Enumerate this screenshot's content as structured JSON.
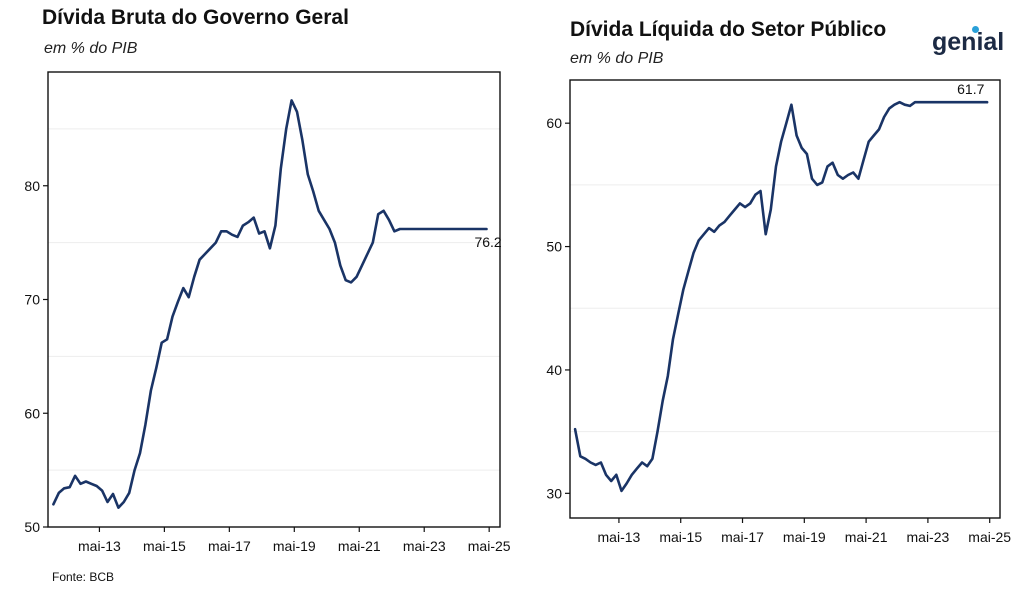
{
  "brand": {
    "name": "genial",
    "accent_color": "#2aa0d8"
  },
  "source": "Fonte: BCB",
  "chart_data": [
    {
      "type": "line",
      "title": "Dívida Bruta do Governo Geral",
      "subtitle": "em % do PIB",
      "xlabel": "",
      "ylabel": "",
      "ylim": [
        50,
        90
      ],
      "yticks": [
        50,
        60,
        70,
        80
      ],
      "xlim": [
        "2011-10",
        "2025-09"
      ],
      "xticks": [
        "mai-13",
        "mai-15",
        "mai-17",
        "mai-19",
        "mai-21",
        "mai-23",
        "mai-25"
      ],
      "grid": false,
      "line_color": "#1a3466",
      "end_label": "76.2",
      "series": [
        {
          "x": [
            "2011-12",
            "2012-02",
            "2012-04",
            "2012-06",
            "2012-08",
            "2012-10",
            "2012-12",
            "2013-02",
            "2013-04",
            "2013-06",
            "2013-08",
            "2013-10",
            "2013-12",
            "2014-02",
            "2014-04",
            "2014-06",
            "2014-08",
            "2014-10",
            "2014-12",
            "2015-02",
            "2015-04",
            "2015-06",
            "2015-08",
            "2015-10",
            "2015-12",
            "2016-02",
            "2016-04",
            "2016-06",
            "2016-08",
            "2016-10",
            "2016-12",
            "2017-02",
            "2017-04",
            "2017-06",
            "2017-08",
            "2017-10",
            "2017-12",
            "2018-02",
            "2018-04",
            "2018-06",
            "2018-08",
            "2018-10",
            "2018-12",
            "2019-02",
            "2019-04",
            "2019-06",
            "2019-08",
            "2019-10",
            "2019-12",
            "2020-02",
            "2020-04",
            "2020-06",
            "2020-08",
            "2020-10",
            "2020-12",
            "2021-02",
            "2021-04",
            "2021-06",
            "2021-08",
            "2021-10",
            "2021-12",
            "2022-02",
            "2022-04",
            "2022-06",
            "2022-08",
            "2022-10",
            "2022-12",
            "2023-02",
            "2023-04",
            "2023-06",
            "2023-08",
            "2023-10",
            "2023-12",
            "2024-02",
            "2024-04",
            "2024-06",
            "2024-08",
            "2024-10",
            "2024-12",
            "2025-02",
            "2025-04"
          ],
          "y": [
            52.0,
            53.0,
            53.4,
            53.5,
            54.5,
            53.8,
            54.0,
            53.8,
            53.6,
            53.2,
            52.2,
            52.9,
            51.7,
            52.2,
            53.0,
            55.0,
            56.5,
            59.0,
            62.0,
            64.0,
            66.2,
            66.5,
            68.5,
            69.8,
            71.0,
            70.2,
            72.0,
            73.5,
            74.0,
            74.5,
            75.0,
            76.0,
            76.0,
            75.7,
            75.5,
            76.5,
            76.8,
            77.2,
            75.8,
            76.0,
            74.5,
            76.5,
            81.5,
            85.0,
            87.5,
            86.5,
            84.0,
            81.0,
            79.5,
            77.8,
            77.0,
            76.2,
            75.0,
            73.0,
            71.7,
            71.5,
            72.0,
            73.0,
            74.0,
            75.0,
            77.5,
            77.8,
            77.0,
            76.0,
            76.2,
            76.2,
            76.2,
            76.2,
            76.2,
            76.2,
            76.2,
            76.2,
            76.2,
            76.2,
            76.2,
            76.2,
            76.2,
            76.2,
            76.2,
            76.2,
            76.2
          ]
        }
      ]
    },
    {
      "type": "line",
      "title": "Dívida Líquida do Setor Público",
      "subtitle": "em % do PIB",
      "xlabel": "",
      "ylabel": "",
      "ylim": [
        28,
        63.5
      ],
      "yticks": [
        30,
        40,
        50,
        60
      ],
      "xlim": [
        "2011-10",
        "2025-09"
      ],
      "xticks": [
        "mai-13",
        "mai-15",
        "mai-17",
        "mai-19",
        "mai-21",
        "mai-23",
        "mai-25"
      ],
      "grid": false,
      "line_color": "#1a3466",
      "end_label": "61.7",
      "series": [
        {
          "x": [
            "2011-12",
            "2012-02",
            "2012-04",
            "2012-06",
            "2012-08",
            "2012-10",
            "2012-12",
            "2013-02",
            "2013-04",
            "2013-06",
            "2013-08",
            "2013-10",
            "2013-12",
            "2014-02",
            "2014-04",
            "2014-06",
            "2014-08",
            "2014-10",
            "2014-12",
            "2015-02",
            "2015-04",
            "2015-06",
            "2015-08",
            "2015-10",
            "2015-12",
            "2016-02",
            "2016-04",
            "2016-06",
            "2016-08",
            "2016-10",
            "2016-12",
            "2017-02",
            "2017-04",
            "2017-06",
            "2017-08",
            "2017-10",
            "2017-12",
            "2018-02",
            "2018-04",
            "2018-06",
            "2018-08",
            "2018-10",
            "2018-12",
            "2019-02",
            "2019-04",
            "2019-06",
            "2019-08",
            "2019-10",
            "2019-12",
            "2020-02",
            "2020-04",
            "2020-06",
            "2020-08",
            "2020-10",
            "2020-12",
            "2021-02",
            "2021-04",
            "2021-06",
            "2021-08",
            "2021-10",
            "2021-12",
            "2022-02",
            "2022-04",
            "2022-06",
            "2022-08",
            "2022-10",
            "2022-12",
            "2023-02",
            "2023-04",
            "2023-06",
            "2023-08",
            "2023-10",
            "2023-12",
            "2024-02",
            "2024-04",
            "2024-06",
            "2024-08",
            "2024-10",
            "2024-12",
            "2025-02",
            "2025-04"
          ],
          "y": [
            35.2,
            33.0,
            32.8,
            32.5,
            32.3,
            32.5,
            31.5,
            31.0,
            31.5,
            30.2,
            30.8,
            31.5,
            32.0,
            32.5,
            32.2,
            32.8,
            35.0,
            37.5,
            39.5,
            42.5,
            44.5,
            46.5,
            48.0,
            49.5,
            50.5,
            51.0,
            51.5,
            51.2,
            51.7,
            52.0,
            52.5,
            53.0,
            53.5,
            53.2,
            53.5,
            54.2,
            54.5,
            51.0,
            53.0,
            56.5,
            58.5,
            60.0,
            61.5,
            59.0,
            58.0,
            57.5,
            55.5,
            55.0,
            55.2,
            56.5,
            56.8,
            55.8,
            55.5,
            55.8,
            56.0,
            55.5,
            57.0,
            58.5,
            59.0,
            59.5,
            60.5,
            61.2,
            61.5,
            61.7,
            61.5,
            61.4,
            61.7,
            61.7,
            61.7,
            61.7,
            61.7,
            61.7,
            61.7,
            61.7,
            61.7,
            61.7,
            61.7,
            61.7,
            61.7,
            61.7,
            61.7
          ]
        }
      ]
    }
  ]
}
